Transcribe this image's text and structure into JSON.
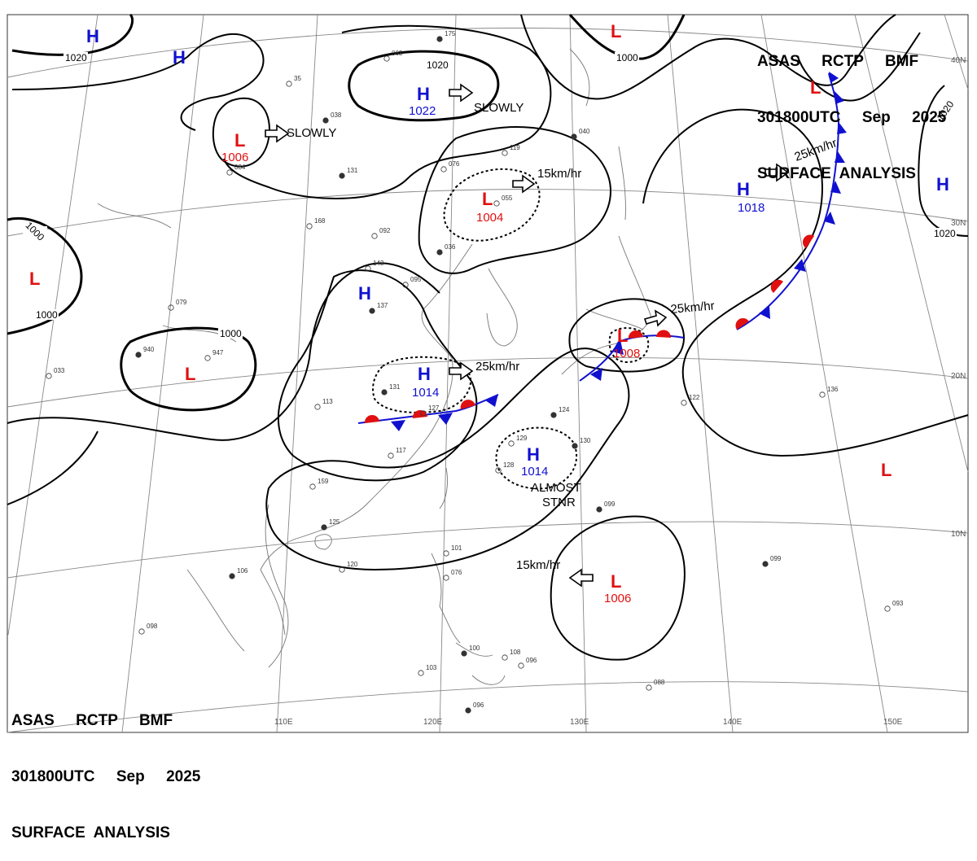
{
  "header_top": {
    "line1": "ASAS     RCTP     BMF",
    "line2": "301800UTC     Sep     2025",
    "line3": "SURFACE  ANALYSIS"
  },
  "header_bottom": {
    "line1": "ASAS     RCTP     BMF",
    "line2": "301800UTC     Sep     2025",
    "line3": "SURFACE  ANALYSIS"
  },
  "colors": {
    "high": "#1010d0",
    "low": "#e01010",
    "warm_front": "#e01010",
    "cold_front": "#1010d0",
    "isobar": "#000000",
    "grid": "#888888",
    "coast": "#777777"
  },
  "lat_labels": [
    "40N",
    "30N",
    "20N",
    "10N"
  ],
  "lon_labels": [
    "110E",
    "120E",
    "130E",
    "140E",
    "150E"
  ],
  "isobar_labels": [
    "1020",
    "1020",
    "1000",
    "1000",
    "1000",
    "1020",
    "1000",
    "1020"
  ],
  "centers": [
    {
      "id": "h-nw",
      "type": "H",
      "pressure": ""
    },
    {
      "id": "h-nw2",
      "type": "H",
      "pressure": ""
    },
    {
      "id": "l-mongolia",
      "type": "L",
      "pressure": "1006"
    },
    {
      "id": "h-northchina",
      "type": "H",
      "pressure": "1022"
    },
    {
      "id": "l-northeast",
      "type": "L",
      "pressure": ""
    },
    {
      "id": "l-ne-china",
      "type": "L",
      "pressure": "1004"
    },
    {
      "id": "h-ne-pacific",
      "type": "H",
      "pressure": "1018"
    },
    {
      "id": "h-far-east",
      "type": "H",
      "pressure": ""
    },
    {
      "id": "l-tibet",
      "type": "L",
      "pressure": ""
    },
    {
      "id": "l-west",
      "type": "L",
      "pressure": ""
    },
    {
      "id": "h-yellowsea",
      "type": "H",
      "pressure": ""
    },
    {
      "id": "h-eastchina",
      "type": "H",
      "pressure": "1014"
    },
    {
      "id": "l-japan",
      "type": "L",
      "pressure": "1008"
    },
    {
      "id": "l-aleutian",
      "type": "L",
      "pressure": ""
    },
    {
      "id": "h-taiwan-east",
      "type": "H",
      "pressure": "1014"
    },
    {
      "id": "l-pacific-east",
      "type": "L",
      "pressure": ""
    },
    {
      "id": "l-philippine-sea",
      "type": "L",
      "pressure": "1006"
    }
  ],
  "motions": [
    {
      "id": "m-mongolia",
      "text": "SLOWLY"
    },
    {
      "id": "m-northchina",
      "text": "SLOWLY"
    },
    {
      "id": "m-ne-china",
      "text": "15km/hr"
    },
    {
      "id": "m-ne-pacific",
      "text": "25km/hr"
    },
    {
      "id": "m-eastchina",
      "text": "25km/hr"
    },
    {
      "id": "m-japan",
      "text": "25km/hr"
    },
    {
      "id": "m-philsea",
      "text": "15km/hr"
    },
    {
      "id": "m-taiwan-east",
      "text": "ALMOST"
    },
    {
      "id": "m-taiwan-east2",
      "text": "STNR"
    }
  ],
  "stations": [
    {
      "v": "175"
    },
    {
      "v": "063"
    },
    {
      "v": "35"
    },
    {
      "v": "038"
    },
    {
      "v": "119"
    },
    {
      "v": "084"
    },
    {
      "v": "131"
    },
    {
      "v": "076"
    },
    {
      "v": "055"
    },
    {
      "v": "040"
    },
    {
      "v": "092"
    },
    {
      "v": "168"
    },
    {
      "v": "036"
    },
    {
      "v": "143"
    },
    {
      "v": "095"
    },
    {
      "v": "137"
    },
    {
      "v": "079"
    },
    {
      "v": "947"
    },
    {
      "v": "940"
    },
    {
      "v": "033"
    },
    {
      "v": "113"
    },
    {
      "v": "131"
    },
    {
      "v": "127"
    },
    {
      "v": "117"
    },
    {
      "v": "124"
    },
    {
      "v": "129"
    },
    {
      "v": "128"
    },
    {
      "v": "130"
    },
    {
      "v": "122"
    },
    {
      "v": "136"
    },
    {
      "v": "099"
    },
    {
      "v": "101"
    },
    {
      "v": "076"
    },
    {
      "v": "096"
    },
    {
      "v": "088"
    },
    {
      "v": "093"
    },
    {
      "v": "106"
    },
    {
      "v": "098"
    },
    {
      "v": "120"
    },
    {
      "v": "125"
    },
    {
      "v": "159"
    },
    {
      "v": "103"
    },
    {
      "v": "100"
    },
    {
      "v": "108"
    },
    {
      "v": "096"
    },
    {
      "v": "099"
    }
  ]
}
